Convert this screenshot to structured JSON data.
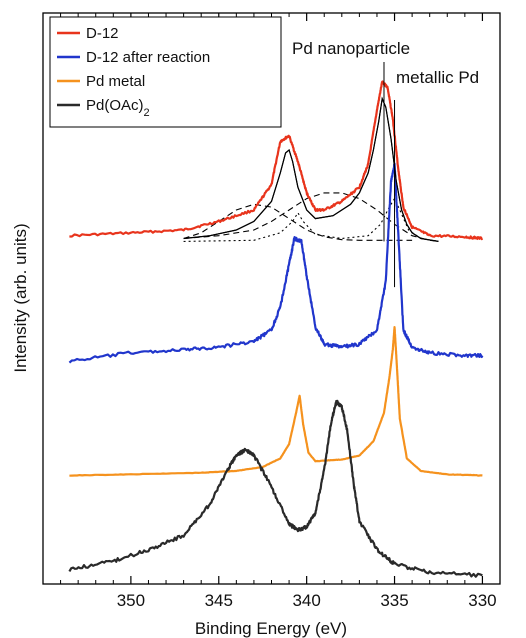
{
  "chart_data": {
    "type": "line",
    "title": "",
    "xlabel": "Binding Energy (eV)",
    "ylabel": "Intensity (arb. units)",
    "x_reversed": true,
    "xlim": [
      355,
      329
    ],
    "ylim": [
      0,
      10
    ],
    "xticks": [
      350,
      345,
      340,
      335,
      330
    ],
    "y_tick_labels": false,
    "grid": false,
    "legend_position": "top-left",
    "series": [
      {
        "name": "D-12",
        "color": "#e8341c",
        "x": [
          353.5,
          350,
          347,
          345,
          343,
          342,
          341.5,
          341.0,
          340.5,
          340.0,
          339.5,
          339.0,
          338.0,
          337.0,
          336.5,
          336.0,
          335.7,
          335.4,
          335.1,
          334.8,
          334.5,
          334.0,
          333.0,
          331.0,
          330.0
        ],
        "y": [
          6.1,
          6.15,
          6.2,
          6.35,
          6.55,
          7.0,
          7.75,
          7.85,
          7.4,
          6.85,
          6.55,
          6.55,
          6.7,
          6.95,
          7.35,
          8.3,
          8.8,
          8.7,
          8.15,
          7.3,
          6.6,
          6.25,
          6.1,
          6.08,
          6.05
        ]
      },
      {
        "name": "D-12 after reaction",
        "color": "#2136cc",
        "x": [
          353.5,
          350,
          347,
          345,
          343,
          342,
          341.5,
          341.0,
          340.7,
          340.3,
          340.0,
          339.5,
          339.0,
          338.0,
          337.0,
          336.0,
          335.5,
          335.2,
          335.0,
          334.8,
          334.5,
          334.0,
          333.0,
          331.0,
          330.0
        ],
        "y": [
          3.9,
          4.05,
          4.1,
          4.15,
          4.25,
          4.45,
          4.85,
          5.6,
          6.05,
          6.0,
          5.4,
          4.5,
          4.2,
          4.15,
          4.2,
          4.45,
          5.3,
          7.05,
          7.35,
          6.2,
          4.45,
          4.15,
          4.05,
          4.0,
          4.0
        ]
      },
      {
        "name": "Pd metal",
        "color": "#f5921e",
        "x": [
          353.5,
          350,
          346,
          344,
          342.5,
          341.5,
          341.0,
          340.6,
          340.4,
          340.2,
          339.9,
          339.5,
          338.0,
          337.0,
          336.2,
          335.6,
          335.3,
          335.1,
          335.0,
          334.9,
          334.7,
          334.3,
          333.5,
          332.0,
          330.0
        ],
        "y": [
          1.9,
          1.92,
          1.95,
          1.98,
          2.05,
          2.2,
          2.45,
          3.0,
          3.3,
          2.8,
          2.3,
          2.15,
          2.18,
          2.25,
          2.5,
          3.0,
          3.6,
          4.1,
          4.5,
          4.0,
          2.9,
          2.2,
          1.98,
          1.92,
          1.9
        ]
      },
      {
        "name": "Pd(OAc)2",
        "color": "#2a2a2a",
        "x": [
          353.5,
          351,
          349,
          347,
          345.5,
          344.5,
          344.0,
          343.5,
          343.0,
          342.0,
          341.0,
          340.5,
          340.0,
          339.5,
          339.0,
          338.6,
          338.3,
          338.0,
          337.7,
          337.3,
          337.0,
          336.0,
          335.0,
          333.0,
          330.0
        ],
        "y": [
          0.25,
          0.4,
          0.6,
          0.85,
          1.4,
          2.0,
          2.25,
          2.35,
          2.25,
          1.7,
          1.05,
          0.95,
          1.0,
          1.25,
          2.0,
          2.85,
          3.2,
          3.1,
          2.7,
          1.7,
          1.1,
          0.6,
          0.35,
          0.2,
          0.15
        ]
      }
    ],
    "fit_components": [
      {
        "role": "fit-envelope",
        "color": "#000000",
        "dash": "solid",
        "x": [
          347.0,
          345.5,
          344.0,
          343.0,
          342.0,
          341.5,
          341.2,
          341.0,
          340.8,
          340.5,
          340.0,
          339.5,
          338.5,
          337.5,
          337.0,
          336.5,
          336.2,
          335.9,
          335.7,
          335.5,
          335.2,
          334.9,
          334.6,
          334.3,
          334.0,
          333.5,
          332.5
        ],
        "y": [
          6.05,
          6.1,
          6.2,
          6.35,
          6.7,
          7.2,
          7.55,
          7.6,
          7.4,
          6.95,
          6.55,
          6.4,
          6.45,
          6.65,
          6.85,
          7.2,
          7.6,
          8.1,
          8.5,
          8.35,
          7.8,
          7.05,
          6.55,
          6.3,
          6.15,
          6.05,
          6.0
        ]
      },
      {
        "role": "pd-nanoparticle-3d5-component",
        "color": "#000000",
        "dash": "dashed",
        "x": [
          347.0,
          345.0,
          343.0,
          342.0,
          341.0,
          340.0,
          339.0,
          338.0,
          337.0,
          336.0,
          335.0,
          334.0,
          333.0,
          332.5
        ],
        "y": [
          6.05,
          6.1,
          6.2,
          6.35,
          6.55,
          6.75,
          6.85,
          6.85,
          6.75,
          6.55,
          6.3,
          6.1,
          6.02,
          6.0
        ]
      },
      {
        "role": "pd-nanoparticle-3d3-component",
        "color": "#000000",
        "dash": "dashed",
        "x": [
          347.0,
          346.0,
          345.0,
          344.0,
          343.0,
          342.0,
          341.0,
          340.0,
          339.0,
          338.0,
          337.0,
          336.0,
          335.0,
          334.0
        ],
        "y": [
          6.05,
          6.15,
          6.35,
          6.55,
          6.65,
          6.6,
          6.4,
          6.2,
          6.08,
          6.03,
          6.02,
          6.02,
          6.02,
          6.02
        ]
      },
      {
        "role": "metallic-pd-component",
        "color": "#000000",
        "dash": "dotted",
        "x": [
          347.0,
          343.0,
          341.5,
          340.8,
          340.5,
          340.2,
          339.5,
          338.0,
          336.5,
          335.8,
          335.3,
          335.0,
          334.7,
          334.2,
          333.5,
          332.5
        ],
        "y": [
          6.0,
          6.02,
          6.15,
          6.35,
          6.5,
          6.35,
          6.12,
          6.05,
          6.1,
          6.3,
          6.6,
          6.75,
          6.55,
          6.2,
          6.05,
          6.0
        ]
      }
    ],
    "legend": [
      {
        "label_html": "D-12",
        "color": "#e8341c"
      },
      {
        "label_html": "D-12 after reaction",
        "color": "#2136cc"
      },
      {
        "label_html": "Pd metal",
        "color": "#f5921e"
      },
      {
        "label_html": "Pd(OAc)<tspan baseline-shift=\"sub\" font-size=\"11\">2</tspan>",
        "color": "#2a2a2a"
      }
    ],
    "reference_lines": [
      {
        "label": "Pd nanoparticle",
        "x": 335.6,
        "y_bottom": 6.0
      },
      {
        "label": "metallic Pd",
        "x": 335.0,
        "y_bottom": 5.2
      }
    ]
  }
}
